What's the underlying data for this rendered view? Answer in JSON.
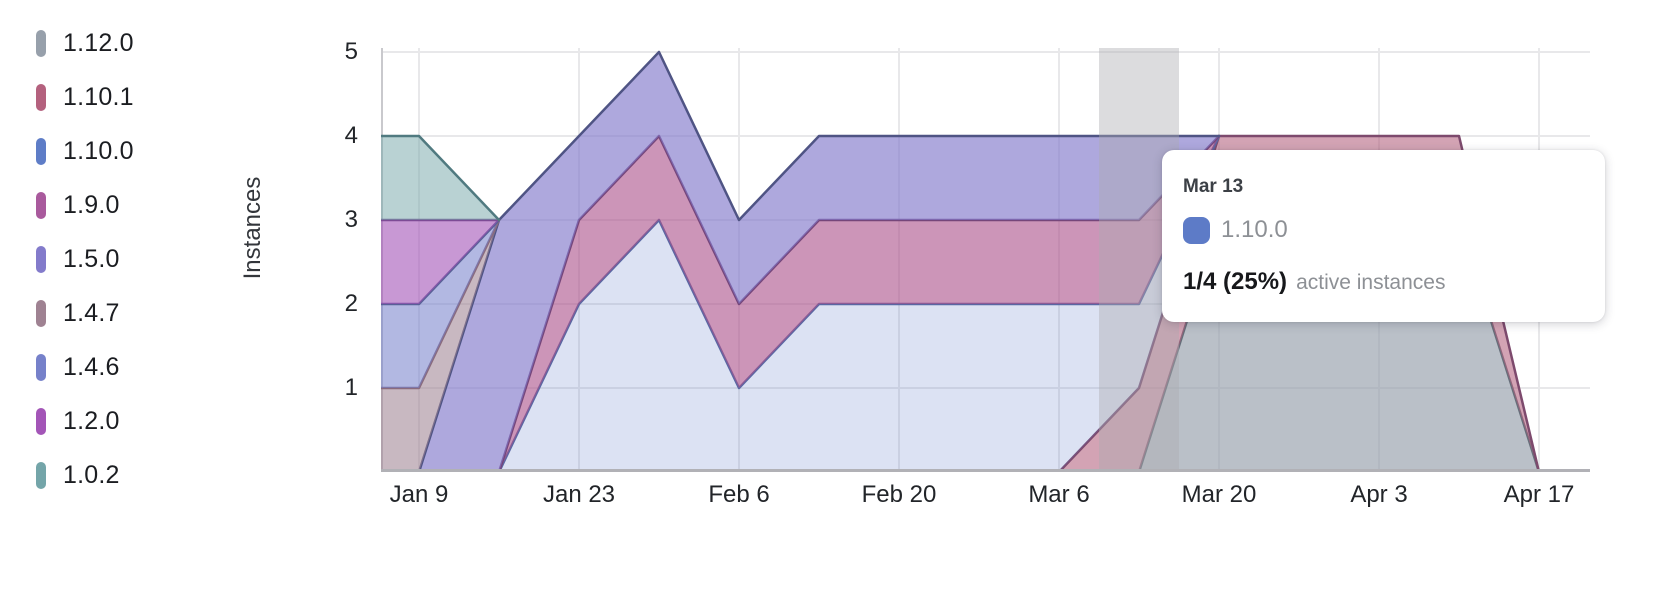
{
  "chart_data": {
    "type": "area",
    "stacked": true,
    "ylabel": "Instances",
    "ylim": [
      0,
      5
    ],
    "y_ticks": [
      1,
      2,
      3,
      4,
      5
    ],
    "grid": true,
    "legend_position": "left",
    "x": [
      "Jan 2",
      "Jan 9",
      "Jan 16",
      "Jan 23",
      "Jan 30",
      "Feb 6",
      "Feb 13",
      "Feb 20",
      "Feb 27",
      "Mar 6",
      "Mar 13",
      "Mar 20",
      "Mar 27",
      "Apr 3",
      "Apr 10",
      "Apr 17"
    ],
    "x_tick_indices": [
      1,
      3,
      5,
      7,
      9,
      11,
      13,
      15
    ],
    "x_tick_labels": [
      "Jan 9",
      "Jan 23",
      "Feb 6",
      "Feb 20",
      "Mar 6",
      "Mar 20",
      "Apr 3",
      "Apr 17"
    ],
    "series": [
      {
        "name": "1.12.0",
        "legend_color": "#97a0ab",
        "fill": "rgba(151,160,171,0.66)",
        "stroke": "#666e7a",
        "values": [
          0,
          0,
          0,
          0,
          0,
          0,
          0,
          0,
          0,
          0,
          0,
          3,
          3,
          3,
          3,
          0
        ]
      },
      {
        "name": "1.10.1",
        "legend_color": "#b4617e",
        "fill": "rgba(180,97,126,0.58)",
        "stroke": "#7d4a6d",
        "values": [
          0,
          0,
          0,
          0,
          0,
          0,
          0,
          0,
          0,
          0,
          1,
          1,
          1,
          1,
          1,
          0
        ]
      },
      {
        "name": "1.10.0",
        "legend_color": "#5e7dc7",
        "fill": "rgba(94,125,199,0.22)",
        "stroke": "#5a67a3",
        "values": [
          0,
          0,
          0,
          2,
          3,
          1,
          2,
          2,
          2,
          2,
          1,
          0,
          0,
          0,
          0,
          0
        ]
      },
      {
        "name": "1.9.0",
        "legend_color": "#a95a9d",
        "fill": "rgba(172,84,140,0.62)",
        "stroke": "#75467a",
        "values": [
          0,
          0,
          0,
          1,
          1,
          1,
          1,
          1,
          1,
          1,
          1,
          0,
          0,
          0,
          0,
          0
        ]
      },
      {
        "name": "1.5.0",
        "legend_color": "#837bcb",
        "fill": "rgba(131,121,203,0.65)",
        "stroke": "#4f5484",
        "values": [
          0,
          0,
          3,
          1,
          1,
          1,
          1,
          1,
          1,
          1,
          1,
          0,
          0,
          0,
          0,
          0
        ]
      },
      {
        "name": "1.4.7",
        "legend_color": "#9f8292",
        "fill": "rgba(160,132,148,0.58)",
        "stroke": "#8a6b7d",
        "values": [
          1,
          1,
          0,
          0,
          0,
          0,
          0,
          0,
          0,
          0,
          0,
          0,
          0,
          0,
          0,
          0
        ]
      },
      {
        "name": "1.4.6",
        "legend_color": "#7681ca",
        "fill": "rgba(118,129,203,0.56)",
        "stroke": "#596097",
        "values": [
          1,
          1,
          0,
          0,
          0,
          0,
          0,
          0,
          0,
          0,
          0,
          0,
          0,
          0,
          0,
          0
        ]
      },
      {
        "name": "1.2.0",
        "legend_color": "#a355b7",
        "fill": "rgba(163,83,183,0.60)",
        "stroke": "#7d4b95",
        "values": [
          1,
          1,
          0,
          0,
          0,
          0,
          0,
          0,
          0,
          0,
          0,
          0,
          0,
          0,
          0,
          0
        ]
      },
      {
        "name": "1.0.2",
        "legend_color": "#74a5a9",
        "fill": "rgba(115,165,168,0.50)",
        "stroke": "#507a80",
        "values": [
          1,
          1,
          0,
          0,
          0,
          0,
          0,
          0,
          0,
          0,
          0,
          0,
          0,
          0,
          0,
          0
        ]
      }
    ],
    "highlight": {
      "x_index": 10,
      "x_label": "Mar 13",
      "band_color": "rgba(172,172,176,0.42)"
    }
  },
  "tooltip": {
    "date": "Mar 13",
    "series_name": "1.10.0",
    "swatch_color": "#5d7bc7",
    "value": "1/4 (25%)",
    "suffix": "active instances"
  },
  "style_colors": {
    "grid": "#e8e8ea",
    "y_axis_line": "#c9c9cd",
    "x_axis_line": "#b1b1b6"
  }
}
